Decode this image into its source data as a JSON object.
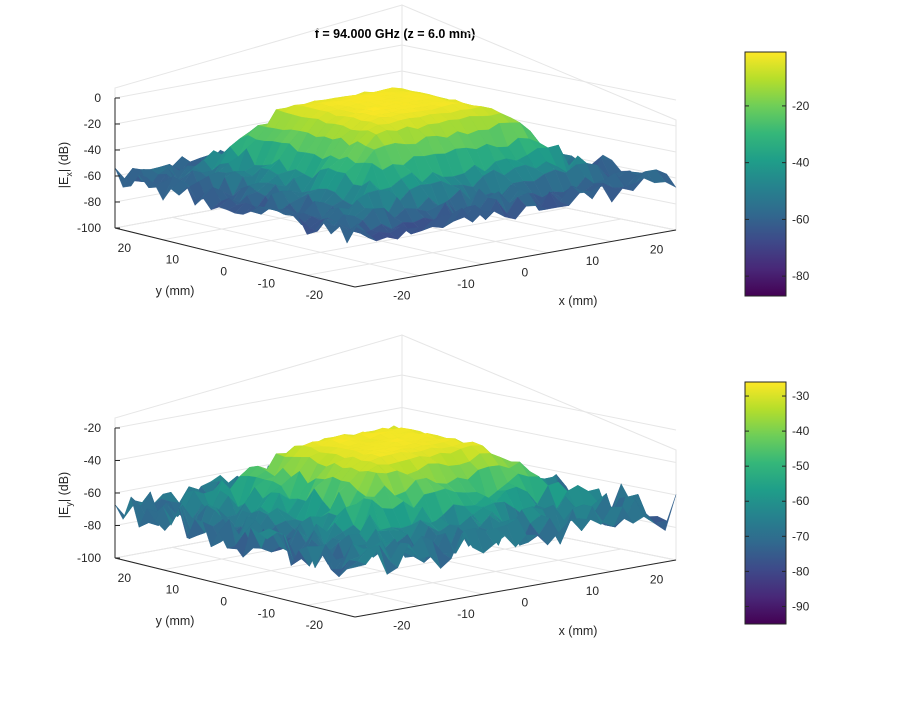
{
  "title": "f = 94.000 GHz (z = 6.0 mm)",
  "colormap": "viridis",
  "colors": {
    "viridis_stops": [
      "#440154",
      "#482878",
      "#3e4989",
      "#31688e",
      "#26828e",
      "#1f9e89",
      "#35b779",
      "#6ece58",
      "#b5de2b",
      "#fde725"
    ],
    "grid": "#e6e6e6",
    "axis": "#262626"
  },
  "chart_data": [
    {
      "type": "surface",
      "name": "Ex",
      "xlabel": "x (mm)",
      "ylabel": "y (mm)",
      "zlabel_parts": [
        "|E",
        "x",
        "| (dB)"
      ],
      "xlim": [
        -25,
        25
      ],
      "ylim": [
        -25,
        25
      ],
      "zlim": [
        -100,
        0
      ],
      "xticks": [
        "-20",
        "-10",
        "0",
        "10",
        "20"
      ],
      "yticks": [
        "20",
        "10",
        "0",
        "-10",
        "-20"
      ],
      "zticks": [
        "0",
        "-20",
        "-40",
        "-60",
        "-80",
        "-100"
      ],
      "surface_model": {
        "peak_db": -1,
        "plateau_halfwidth_mm": 14,
        "edge_floor_db": -55,
        "noise_db": 18,
        "grid_n": 31
      },
      "colorbar": {
        "clim": [
          -87,
          -1
        ],
        "ticks": [
          "-20",
          "-40",
          "-60",
          "-80"
        ]
      }
    },
    {
      "type": "surface",
      "name": "Ey",
      "xlabel": "x (mm)",
      "ylabel": "y (mm)",
      "zlabel_parts": [
        "|E",
        "y",
        "| (dB)"
      ],
      "xlim": [
        -25,
        25
      ],
      "ylim": [
        -25,
        25
      ],
      "zlim": [
        -100,
        -20
      ],
      "xticks": [
        "-20",
        "-10",
        "0",
        "10",
        "20"
      ],
      "yticks": [
        "20",
        "10",
        "0",
        "-10",
        "-20"
      ],
      "zticks": [
        "-20",
        "-40",
        "-60",
        "-80",
        "-100"
      ],
      "surface_model": {
        "peak_db": -26,
        "plateau_halfwidth_mm": 13,
        "edge_floor_db": -60,
        "noise_db": 22,
        "grid_n": 31
      },
      "colorbar": {
        "clim": [
          -95,
          -26
        ],
        "ticks": [
          "-30",
          "-40",
          "-50",
          "-60",
          "-70",
          "-80",
          "-90"
        ]
      }
    }
  ]
}
